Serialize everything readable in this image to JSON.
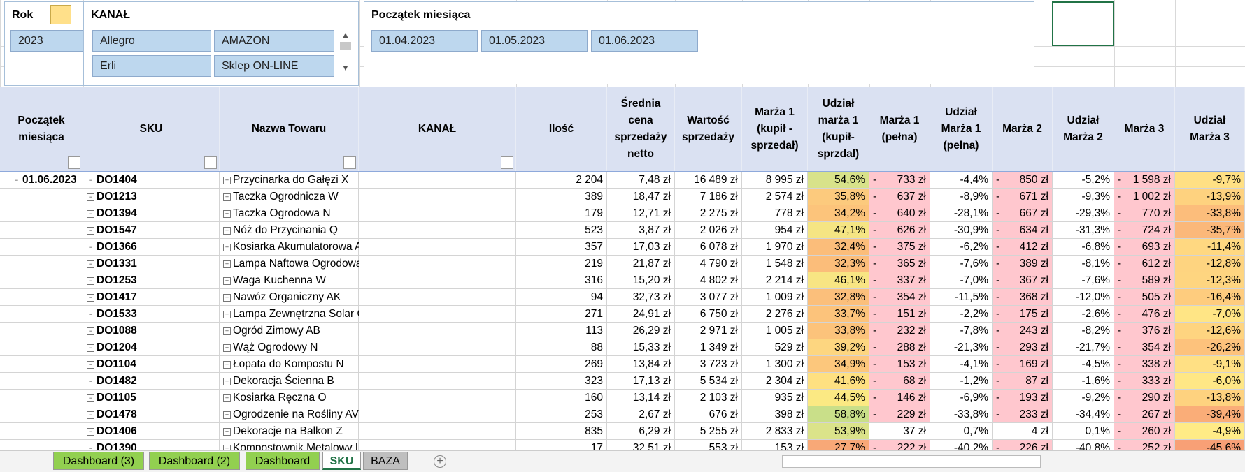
{
  "slicers": {
    "rok": {
      "title": "Rok",
      "items": [
        "2023"
      ]
    },
    "kanal": {
      "title": "KANAŁ",
      "items": [
        "Allegro",
        "AMAZON",
        "Erli",
        "Sklep ON-LINE"
      ]
    },
    "month": {
      "title": "Początek miesiąca",
      "items": [
        "01.04.2023",
        "01.05.2023",
        "01.06.2023"
      ]
    }
  },
  "table": {
    "header_fill": "#dae1f2",
    "negative_fill": "#ffc7ce",
    "headers": [
      "Początek miesiąca",
      "SKU",
      "Nazwa Towaru",
      "KANAŁ",
      "Ilość",
      "Średnia cena sprzedaży netto",
      "Wartość sprzedaży",
      "Marża 1 (kupił - sprzedał)",
      "Udział marża 1 (kupił-sprzdał)",
      "Marża 1 (pełna)",
      "Udział Marża 1 (pełna)",
      "Marża 2",
      "Udział Marża 2",
      "Marża 3",
      "Udział Marża 3"
    ],
    "rows": [
      {
        "cells": [
          "01.06.2023",
          "DO1404",
          "Przycinarka do Gałęzi X",
          null,
          "2 204",
          "7,48 zł",
          "16 489 zł",
          "8 995 zł",
          "54,6%",
          [
            "-",
            "733 zł"
          ],
          "-4,4%",
          [
            "-",
            "850 zł"
          ],
          "-5,2%",
          [
            "-",
            "1 598 zł"
          ],
          "-9,7%"
        ],
        "colors": [
          "#d8e28a",
          "#ffe084"
        ]
      },
      {
        "cells": [
          null,
          "DO1213",
          "Taczka Ogrodnicza W",
          null,
          "389",
          "18,47 zł",
          "7 186 zł",
          "2 574 zł",
          "35,8%",
          [
            "-",
            "637 zł"
          ],
          "-8,9%",
          [
            "-",
            "671 zł"
          ],
          "-9,3%",
          [
            "-",
            "1 002 zł"
          ],
          "-13,9%"
        ],
        "colors": [
          "#fcca7d",
          "#fed27f"
        ]
      },
      {
        "cells": [
          null,
          "DO1394",
          "Taczka Ogrodowa N",
          null,
          "179",
          "12,71 zł",
          "2 275 zł",
          "778 zł",
          "34,2%",
          [
            "-",
            "640 zł"
          ],
          "-28,1%",
          [
            "-",
            "667 zł"
          ],
          "-29,3%",
          [
            "-",
            "770 zł"
          ],
          "-33,8%"
        ],
        "colors": [
          "#fcc47b",
          "#fcbd7b"
        ]
      },
      {
        "cells": [
          null,
          "DO1547",
          "Nóż do Przycinania Q",
          null,
          "523",
          "3,87 zł",
          "2 026 zł",
          "954 zł",
          "47,1%",
          [
            "-",
            "626 zł"
          ],
          "-30,9%",
          [
            "-",
            "634 zł"
          ],
          "-31,3%",
          [
            "-",
            "724 zł"
          ],
          "-35,7%"
        ],
        "colors": [
          "#f5e583",
          "#fbb87a"
        ]
      },
      {
        "cells": [
          null,
          "DO1366",
          "Kosiarka Akumulatorowa AJ",
          null,
          "357",
          "17,03 zł",
          "6 078 zł",
          "1 970 zł",
          "32,4%",
          [
            "-",
            "375 zł"
          ],
          "-6,2%",
          [
            "-",
            "412 zł"
          ],
          "-6,8%",
          [
            "-",
            "693 zł"
          ],
          "-11,4%"
        ],
        "colors": [
          "#fbbd7a",
          "#ffd881"
        ]
      },
      {
        "cells": [
          null,
          "DO1331",
          "Lampa Naftowa Ogrodowa A",
          null,
          "219",
          "21,87 zł",
          "4 790 zł",
          "1 548 zł",
          "32,3%",
          [
            "-",
            "365 zł"
          ],
          "-7,6%",
          [
            "-",
            "389 zł"
          ],
          "-8,1%",
          [
            "-",
            "612 zł"
          ],
          "-12,8%"
        ],
        "colors": [
          "#fbbd7a",
          "#fed480"
        ]
      },
      {
        "cells": [
          null,
          "DO1253",
          "Waga Kuchenna W",
          null,
          "316",
          "15,20 zł",
          "4 802 zł",
          "2 214 zł",
          "46,1%",
          [
            "-",
            "337 zł"
          ],
          "-7,0%",
          [
            "-",
            "367 zł"
          ],
          "-7,6%",
          [
            "-",
            "589 zł"
          ],
          "-12,3%"
        ],
        "colors": [
          "#f8e583",
          "#fed580"
        ]
      },
      {
        "cells": [
          null,
          "DO1417",
          "Nawóz Organiczny AK",
          null,
          "94",
          "32,73 zł",
          "3 077 zł",
          "1 009 zł",
          "32,8%",
          [
            "-",
            "354 zł"
          ],
          "-11,5%",
          [
            "-",
            "368 zł"
          ],
          "-12,0%",
          [
            "-",
            "505 zł"
          ],
          "-16,4%"
        ],
        "colors": [
          "#fbbf7b",
          "#fecc7e"
        ]
      },
      {
        "cells": [
          null,
          "DO1533",
          "Lampa Zewnętrzna Solar C",
          null,
          "271",
          "24,91 zł",
          "6 750 zł",
          "2 276 zł",
          "33,7%",
          [
            "-",
            "151 zł"
          ],
          "-2,2%",
          [
            "-",
            "175 zł"
          ],
          "-2,6%",
          [
            "-",
            "476 zł"
          ],
          "-7,0%"
        ],
        "colors": [
          "#fcc37b",
          "#ffe585"
        ]
      },
      {
        "cells": [
          null,
          "DO1088",
          "Ogród Zimowy AB",
          null,
          "113",
          "26,29 zł",
          "2 971 zł",
          "1 005 zł",
          "33,8%",
          [
            "-",
            "232 zł"
          ],
          "-7,8%",
          [
            "-",
            "243 zł"
          ],
          "-8,2%",
          [
            "-",
            "376 zł"
          ],
          "-12,6%"
        ],
        "colors": [
          "#fcc37b",
          "#fed480"
        ]
      },
      {
        "cells": [
          null,
          "DO1204",
          "Wąż Ogrodowy N",
          null,
          "88",
          "15,33 zł",
          "1 349 zł",
          "529 zł",
          "39,2%",
          [
            "-",
            "288 zł"
          ],
          "-21,3%",
          [
            "-",
            "293 zł"
          ],
          "-21,7%",
          [
            "-",
            "354 zł"
          ],
          "-26,2%"
        ],
        "colors": [
          "#fdd680",
          "#fdc27c"
        ]
      },
      {
        "cells": [
          null,
          "DO1104",
          "Łopata do Kompostu N",
          null,
          "269",
          "13,84 zł",
          "3 723 zł",
          "1 300 zł",
          "34,9%",
          [
            "-",
            "153 zł"
          ],
          "-4,1%",
          [
            "-",
            "169 zł"
          ],
          "-4,5%",
          [
            "-",
            "338 zł"
          ],
          "-9,1%"
        ],
        "colors": [
          "#fcc77c",
          "#ffe084"
        ]
      },
      {
        "cells": [
          null,
          "DO1482",
          "Dekoracja Ścienna B",
          null,
          "323",
          "17,13 zł",
          "5 534 zł",
          "2 304 zł",
          "41,6%",
          [
            "-",
            "68 zł"
          ],
          "-1,2%",
          [
            "-",
            "87 zł"
          ],
          "-1,6%",
          [
            "-",
            "333 zł"
          ],
          "-6,0%"
        ],
        "colors": [
          "#fee081",
          "#ffe785"
        ]
      },
      {
        "cells": [
          null,
          "DO1105",
          "Kosiarka Ręczna O",
          null,
          "160",
          "13,14 zł",
          "2 103 zł",
          "935 zł",
          "44,5%",
          [
            "-",
            "146 zł"
          ],
          "-6,9%",
          [
            "-",
            "193 zł"
          ],
          "-9,2%",
          [
            "-",
            "290 zł"
          ],
          "-13,8%"
        ],
        "colors": [
          "#fbe983",
          "#fed27f"
        ]
      },
      {
        "cells": [
          null,
          "DO1478",
          "Ogrodzenie na Rośliny AV",
          null,
          "253",
          "2,67 zł",
          "676 zł",
          "398 zł",
          "58,8%",
          [
            "-",
            "229 zł"
          ],
          "-33,8%",
          [
            "-",
            "233 zł"
          ],
          "-34,4%",
          [
            "-",
            "267 zł"
          ],
          "-39,4%"
        ],
        "colors": [
          "#c9df89",
          "#faad78"
        ]
      },
      {
        "cells": [
          null,
          "DO1406",
          "Dekoracje na Balkon Z",
          null,
          "835",
          "6,29 zł",
          "5 255 zł",
          "2 833 zł",
          "53,9%",
          "37 zł",
          "0,7%",
          "4 zł",
          "0,1%",
          [
            "-",
            "260 zł"
          ],
          "-4,9%"
        ],
        "colors": [
          "#dbe38a",
          "#ffeb86"
        ]
      },
      {
        "cells": [
          null,
          "DO1390",
          "Kompostownik Metalowy L",
          null,
          "17",
          "32,51 zł",
          "553 zł",
          "153 zł",
          "27,7%",
          [
            "-",
            "222 zł"
          ],
          "-40,2%",
          [
            "-",
            "226 zł"
          ],
          "-40,8%",
          [
            "-",
            "252 zł"
          ],
          "-45,6%"
        ],
        "colors": [
          "#f8a877",
          "#f8a076"
        ]
      }
    ]
  },
  "sheet_tabs": [
    {
      "name": "Dashboard (3)",
      "color": "#92d050"
    },
    {
      "name": "Dashboard (2)",
      "color": "#92d050"
    },
    {
      "name": "Dashboard",
      "color": "#92d050"
    },
    {
      "name": "SKU",
      "color": "#ffffff"
    },
    {
      "name": "BAZA",
      "color": "#bfbfbf"
    }
  ]
}
